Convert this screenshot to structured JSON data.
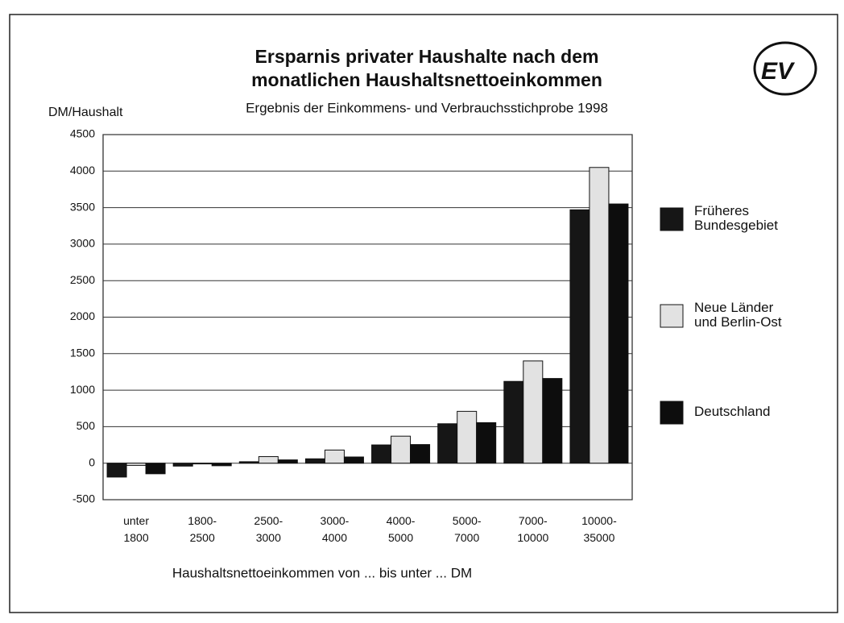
{
  "chart_data": {
    "type": "bar",
    "title": "Ersparnis privater Haushalte nach dem monatlichen Haushaltsnettoeinkommen",
    "subtitle": "Ergebnis der Einkommens- und Verbrauchsstichprobe 1998",
    "y_label": "DM/Haushalt",
    "x_label": "Haushaltsnettoeinkommen von ... bis unter ... DM",
    "logo": "EV",
    "categories": [
      "unter 1800",
      "1800-2500",
      "2500-3000",
      "3000-4000",
      "4000-5000",
      "5000-7000",
      "7000-10000",
      "10000-35000"
    ],
    "series": [
      {
        "name": "Früheres Bundesgebiet",
        "color": "#161616",
        "values": [
          -190,
          -40,
          20,
          60,
          250,
          540,
          1120,
          3470
        ]
      },
      {
        "name": "Neue Länder und Berlin-Ost",
        "color": "#e2e2e2",
        "values": [
          -30,
          -10,
          90,
          180,
          370,
          710,
          1400,
          4050
        ]
      },
      {
        "name": "Deutschland",
        "color": "#0d0d0d",
        "values": [
          -145,
          -35,
          45,
          85,
          255,
          555,
          1160,
          3550
        ]
      }
    ],
    "ylim": [
      -500,
      4500
    ],
    "yticks": [
      -500,
      0,
      500,
      1000,
      1500,
      2000,
      2500,
      3000,
      3500,
      4000,
      4500
    ],
    "grid": true,
    "legend": "right"
  }
}
